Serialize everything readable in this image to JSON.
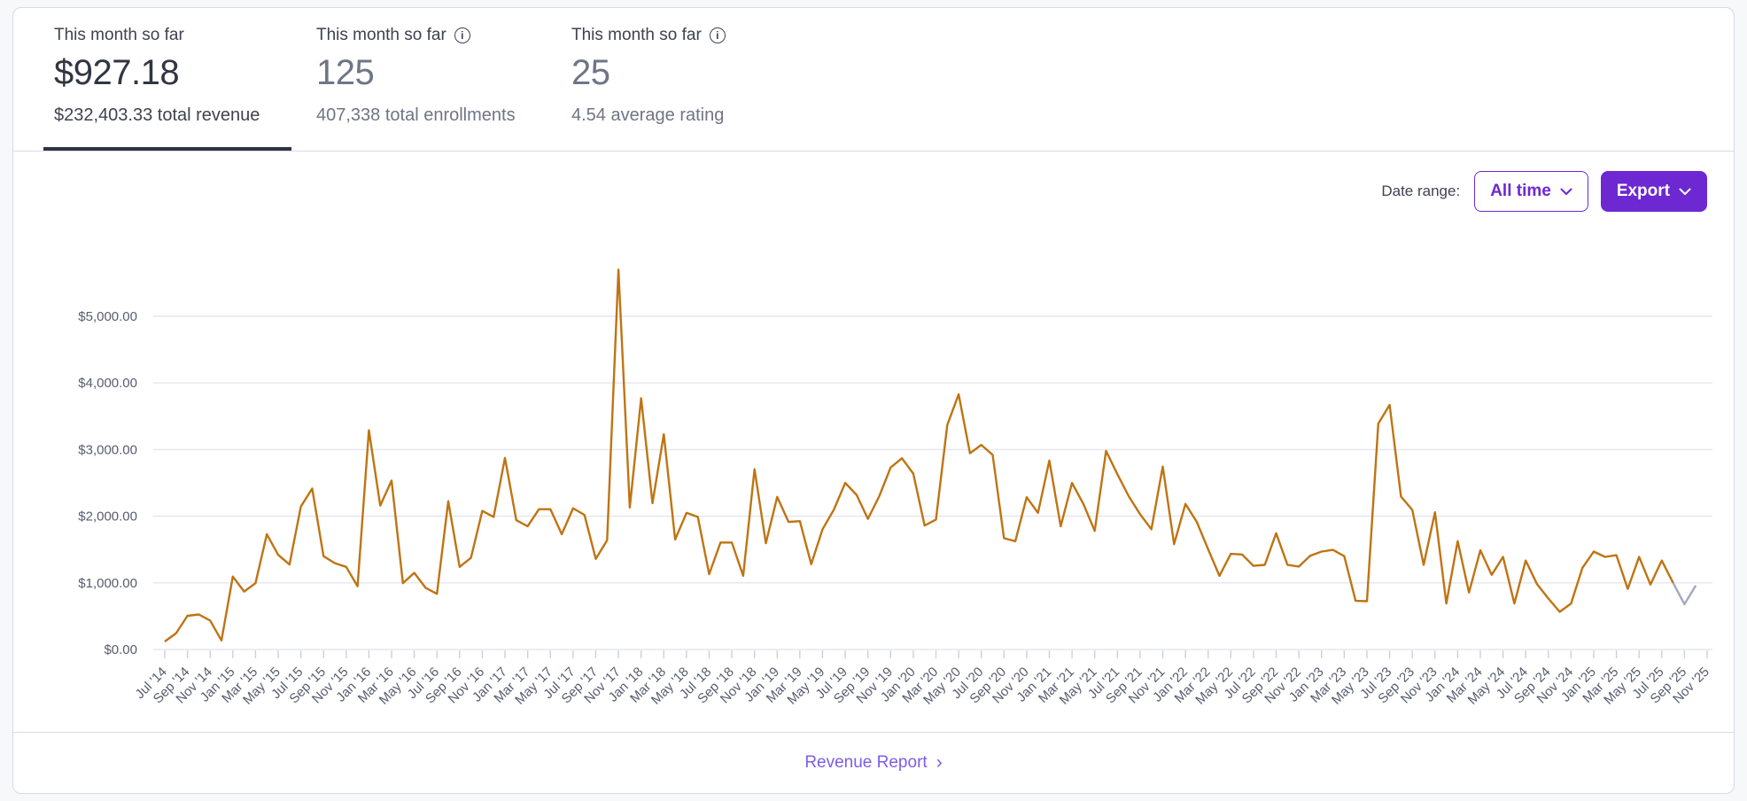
{
  "stats": {
    "cards": [
      {
        "label": "This month so far",
        "value": "$927.18",
        "sub": "$232,403.33 total revenue",
        "active": true,
        "has_info": false
      },
      {
        "label": "This month so far",
        "value": "125",
        "sub": "407,338 total enrollments",
        "active": false,
        "has_info": true
      },
      {
        "label": "This month so far",
        "value": "25",
        "sub": "4.54 average rating",
        "active": false,
        "has_info": true
      }
    ]
  },
  "controls": {
    "date_range_label": "Date range:",
    "range_value": "All time",
    "export_label": "Export"
  },
  "footer": {
    "link_label": "Revenue Report",
    "chevron": "›"
  },
  "colors": {
    "accent_purple": "#6d28d2",
    "link_purple": "#7b5de8",
    "line_orange": "#bf7412",
    "tail_gray": "#a2a8bf",
    "gridline": "#e5e6ef",
    "axis_text": "#565d6d",
    "active_underline": "#2d3340"
  },
  "chart_data": {
    "type": "line",
    "title": "Monthly revenue (all time)",
    "unit": "USD",
    "x_monthly_from": "2014-07",
    "x_monthly_to": "2025-10",
    "grid": true,
    "legend": false,
    "ylim": [
      0,
      5866
    ],
    "y_tick_labels": [
      "$5,000.00",
      "$4,000.00",
      "$3,000.00",
      "$2,000.00",
      "$1,000.00",
      "$0.00"
    ],
    "x_tick_labels": [
      "Jul '14",
      "Sep '14",
      "Nov '14",
      "Jan '15",
      "Mar '15",
      "May '15",
      "Jul '15",
      "Sep '15",
      "Nov '15",
      "Jan '16",
      "Mar '16",
      "May '16",
      "Jul '16",
      "Sep '16",
      "Nov '16",
      "Jan '17",
      "Mar '17",
      "May '17",
      "Jul '17",
      "Sep '17",
      "Nov '17",
      "Jan '18",
      "Mar '18",
      "May '18",
      "Jul '18",
      "Sep '18",
      "Nov '18",
      "Jan '19",
      "Mar '19",
      "May '19",
      "Jul '19",
      "Sep '19",
      "Nov '19",
      "Jan '20",
      "Mar '20",
      "May '20",
      "Jul '20",
      "Sep '20",
      "Nov '20",
      "Jan '21",
      "Mar '21",
      "May '21",
      "Jul '21",
      "Sep '21",
      "Nov '21",
      "Jan '22",
      "Mar '22",
      "May '22",
      "Jul '22",
      "Sep '22",
      "Nov '22",
      "Jan '23",
      "Mar '23",
      "May '23",
      "Jul '23",
      "Sep '23",
      "Nov '23",
      "Jan '24",
      "Mar '24",
      "May '24",
      "Jul '24",
      "Sep '24",
      "Nov '24",
      "Jan '25",
      "Mar '25",
      "May '25",
      "Jul '25",
      "Sep '25",
      "Nov '25"
    ],
    "values": [
      120,
      245,
      505,
      525,
      435,
      135,
      1095,
      870,
      995,
      1730,
      1420,
      1275,
      2145,
      2415,
      1400,
      1295,
      1240,
      950,
      3290,
      2160,
      2535,
      995,
      1150,
      925,
      835,
      2225,
      1240,
      1375,
      2080,
      1990,
      2875,
      1940,
      1850,
      2105,
      2105,
      1730,
      2120,
      2020,
      1360,
      1640,
      5700,
      2130,
      3770,
      2195,
      3230,
      1650,
      2050,
      1990,
      1130,
      1605,
      1605,
      1105,
      2705,
      1595,
      2290,
      1915,
      1925,
      1280,
      1805,
      2100,
      2500,
      2320,
      1960,
      2300,
      2730,
      2870,
      2640,
      1860,
      1950,
      3370,
      3830,
      2945,
      3070,
      2920,
      1670,
      1625,
      2285,
      2050,
      2835,
      1850,
      2500,
      2185,
      1780,
      2980,
      2630,
      2300,
      2030,
      1805,
      2745,
      1580,
      2185,
      1915,
      1505,
      1105,
      1435,
      1425,
      1255,
      1270,
      1745,
      1270,
      1245,
      1405,
      1470,
      1495,
      1400,
      730,
      725,
      3390,
      3670,
      2295,
      2095,
      1270,
      2060,
      690,
      1625,
      855,
      1490,
      1120,
      1390,
      690,
      1335,
      980,
      765,
      565,
      690,
      1225,
      1470,
      1390,
      1415,
      910,
      1390,
      975,
      1335,
      1000,
      680,
      960
    ],
    "incomplete_tail_from_index": 133,
    "line_color": "#bf7412",
    "tail_color": "#a2a8bf"
  }
}
